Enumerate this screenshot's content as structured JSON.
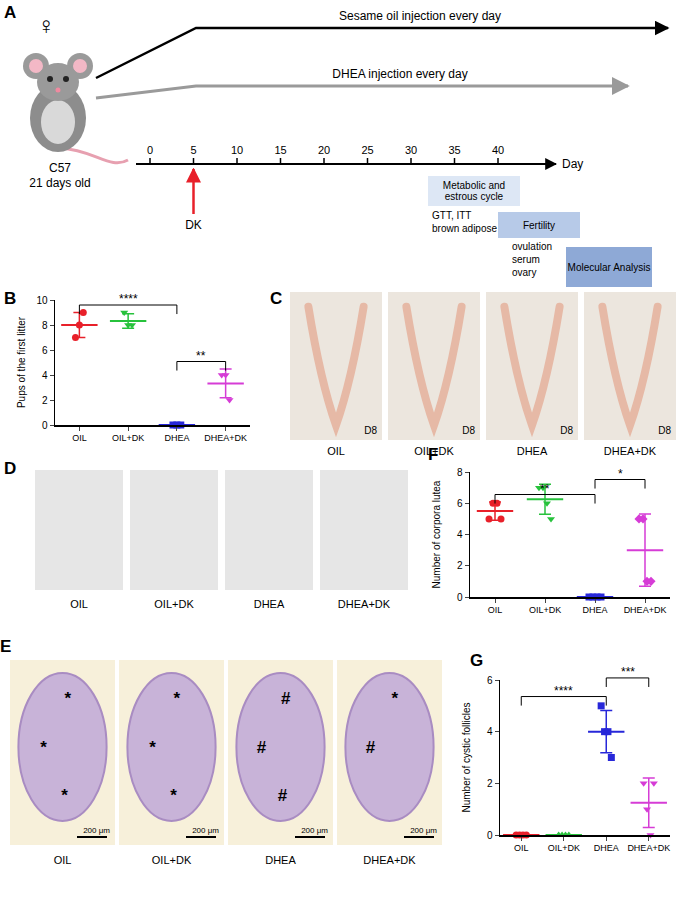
{
  "diagram": {
    "panel": "A",
    "sex_symbol": "♀",
    "strain": "C57",
    "age": "21 days old",
    "treatments": [
      {
        "label": "Sesame oil injection every day",
        "color": "#000000"
      },
      {
        "label": "DHEA injection every day",
        "color": "#9a9a9a"
      }
    ],
    "timeline": {
      "ticks": [
        0,
        5,
        10,
        15,
        20,
        25,
        30,
        35,
        40
      ],
      "label": "Day"
    },
    "intervention": {
      "label": "DK",
      "day": 5,
      "color": "#e8202a"
    },
    "stages": [
      {
        "box": "Metabolic and estrous cycle",
        "notes": [
          "GTT, ITT",
          "brown adipose"
        ]
      },
      {
        "box": "Fertility",
        "notes": [
          "ovulation",
          "serum",
          "ovary"
        ]
      },
      {
        "box": "Molecular Analysis"
      }
    ]
  },
  "images": [
    {
      "panel": "C",
      "groups": [
        "OIL",
        "OIL+DK",
        "DHEA",
        "DHEA+DK"
      ],
      "label": "D8"
    },
    {
      "panel": "D",
      "groups": [
        "OIL",
        "OIL+DK",
        "DHEA",
        "DHEA+DK"
      ]
    },
    {
      "panel": "E",
      "groups": [
        "OIL",
        "OIL+DK",
        "DHEA",
        "DHEA+DK"
      ],
      "marks": [
        [
          "*",
          "*",
          "*"
        ],
        [
          "*",
          "*",
          "*"
        ],
        [
          "#",
          "#",
          "#"
        ],
        [
          "*",
          "#"
        ]
      ],
      "scale_bar": "200 μm"
    }
  ],
  "chart_data": [
    {
      "panel": "B",
      "type": "scatter",
      "y_label": "Pups of the first litter",
      "categories": [
        "OIL",
        "OIL+DK",
        "DHEA",
        "DHEA+DK"
      ],
      "points": [
        [
          7,
          8,
          9
        ],
        [
          9,
          8,
          8
        ],
        [
          0,
          0,
          0
        ],
        [
          4,
          4,
          2
        ]
      ],
      "means": [
        8,
        8.33,
        0,
        3.33
      ],
      "errors": [
        1,
        0.58,
        0,
        1.15
      ],
      "colors": [
        "#e8202a",
        "#27c23c",
        "#2727d9",
        "#d63cd6"
      ],
      "markers": [
        "circle",
        "triangle-down",
        "square",
        "triangle-down"
      ],
      "ylim": [
        0,
        10
      ],
      "yticks": [
        0,
        2,
        4,
        6,
        8,
        10
      ],
      "grid": false,
      "significance": [
        {
          "from": "OIL",
          "to": "DHEA",
          "label": "****"
        },
        {
          "from": "DHEA",
          "to": "DHEA+DK",
          "label": "**"
        }
      ]
    },
    {
      "panel": "F",
      "type": "scatter",
      "y_label": "Number of corpora lutea",
      "categories": [
        "OIL",
        "OIL+DK",
        "DHEA",
        "DHEA+DK"
      ],
      "points": [
        [
          5,
          6,
          6,
          5
        ],
        [
          7,
          7,
          6,
          5
        ],
        [
          0,
          0,
          0,
          0
        ],
        [
          5,
          5,
          1,
          1
        ]
      ],
      "means": [
        5.5,
        6.25,
        0,
        3
      ],
      "errors": [
        0.58,
        0.96,
        0,
        2.31
      ],
      "colors": [
        "#e8202a",
        "#27c23c",
        "#2727d9",
        "#d63cd6"
      ],
      "markers": [
        "circle",
        "triangle-down",
        "square",
        "diamond"
      ],
      "ylim": [
        0,
        8
      ],
      "yticks": [
        0,
        2,
        4,
        6,
        8
      ],
      "grid": false,
      "significance": [
        {
          "from": "OIL",
          "to": "DHEA",
          "label": "**"
        },
        {
          "from": "DHEA",
          "to": "DHEA+DK",
          "label": "*"
        }
      ]
    },
    {
      "panel": "G",
      "type": "scatter",
      "y_label": "Number of cystic follicles",
      "categories": [
        "OIL",
        "OIL+DK",
        "DHEA",
        "DHEA+DK"
      ],
      "points": [
        [
          0,
          0,
          0,
          0
        ],
        [
          0,
          0,
          0,
          0
        ],
        [
          5,
          4,
          4,
          3
        ],
        [
          2,
          1,
          0,
          2
        ]
      ],
      "means": [
        0,
        0,
        4,
        1.25
      ],
      "errors": [
        0,
        0,
        0.82,
        0.96
      ],
      "colors": [
        "#e8202a",
        "#27c23c",
        "#2727d9",
        "#d63cd6"
      ],
      "markers": [
        "circle",
        "triangle-up",
        "square",
        "triangle-down"
      ],
      "ylim": [
        0,
        6
      ],
      "yticks": [
        0,
        2,
        4,
        6
      ],
      "grid": false,
      "significance": [
        {
          "from": "OIL",
          "to": "DHEA",
          "label": "****"
        },
        {
          "from": "DHEA",
          "to": "DHEA+DK",
          "label": "***"
        }
      ]
    }
  ]
}
